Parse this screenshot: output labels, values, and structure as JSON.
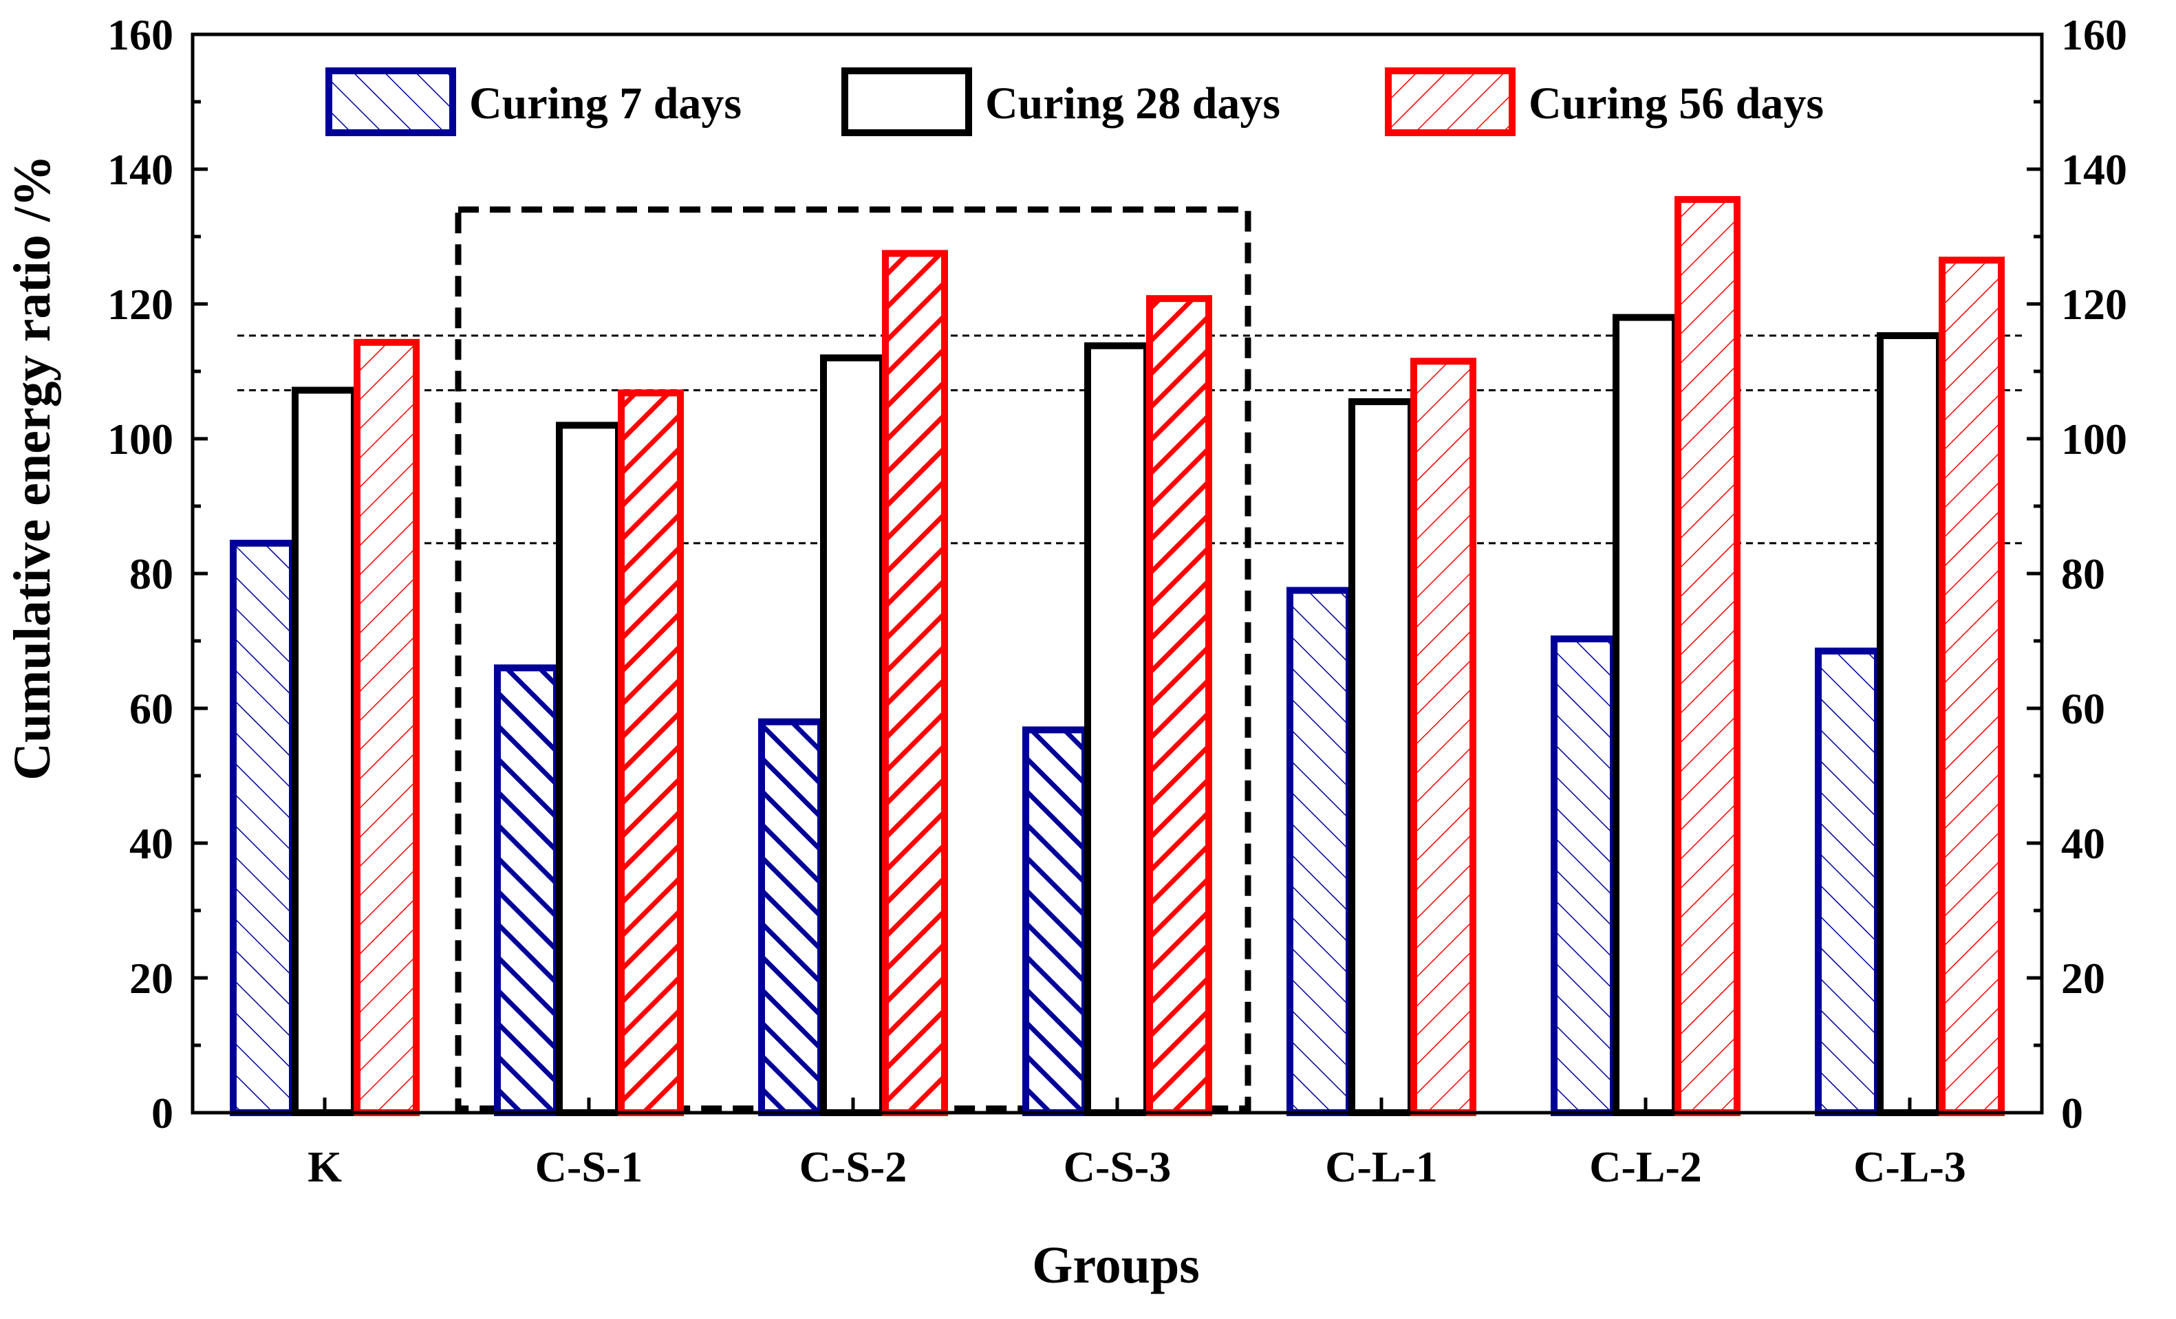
{
  "chart_data": {
    "type": "bar",
    "title": "",
    "xlabel": "Groups",
    "ylabel": "Cumulative energy ratio /%",
    "ylim": [
      0,
      160
    ],
    "yticks": [
      0,
      20,
      40,
      60,
      80,
      100,
      120,
      140,
      160
    ],
    "secondary_y_axis": true,
    "grid": false,
    "legend_position": "top",
    "categories": [
      "K",
      "C-S-1",
      "C-S-2",
      "C-S-3",
      "C-L-1",
      "C-L-2",
      "C-L-3"
    ],
    "series": [
      {
        "name": "Curing 7 days",
        "color": "#000099",
        "pattern": "forward-hatch",
        "values": [
          84.5,
          66,
          58,
          56.8,
          77.5,
          70.3,
          68.5
        ]
      },
      {
        "name": "Curing 28 days",
        "color": "#000000",
        "pattern": "none",
        "values": [
          107.2,
          102,
          112,
          113.8,
          105.5,
          118,
          115.3
        ]
      },
      {
        "name": "Curing 56 days",
        "color": "#ff0000",
        "pattern": "back-hatch",
        "values": [
          114.3,
          106.8,
          127.5,
          120.8,
          111.5,
          135.5,
          126.5
        ]
      }
    ],
    "reference_lines": [
      84.5,
      107.2,
      115.3
    ],
    "highlight_group": [
      "C-S-1",
      "C-S-2",
      "C-S-3"
    ]
  }
}
